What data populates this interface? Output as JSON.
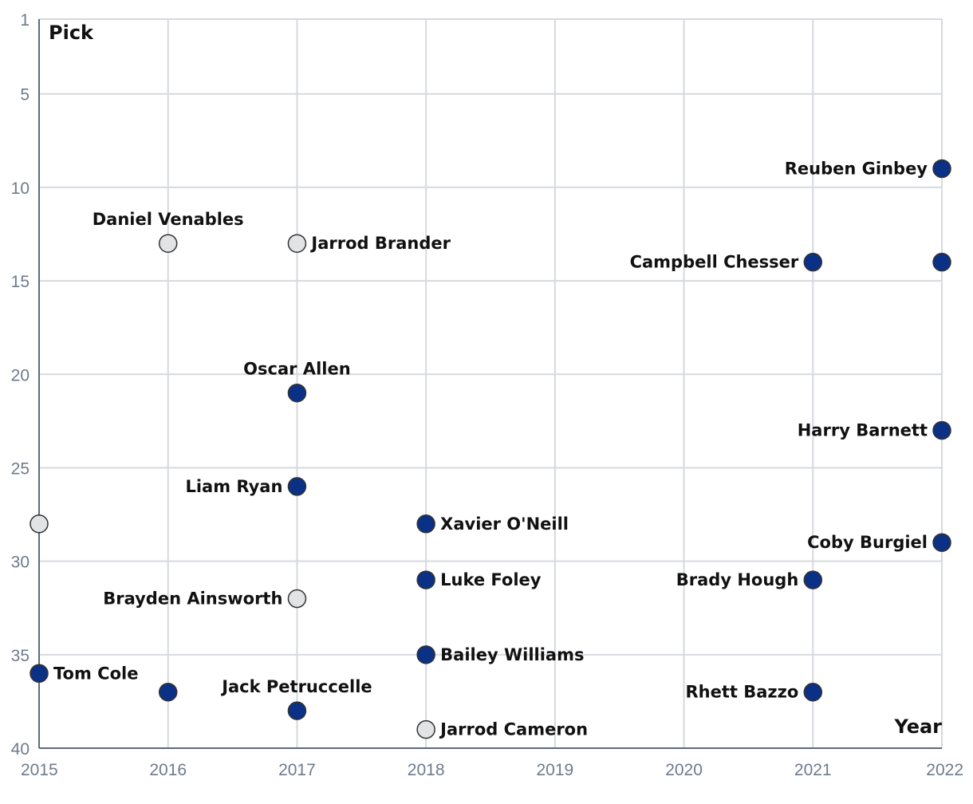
{
  "chart_data": {
    "type": "scatter",
    "xlabel": "Year",
    "ylabel": "Pick",
    "xlim": [
      2015,
      2022
    ],
    "ylim": [
      1,
      40
    ],
    "y_inverted": true,
    "x_ticks": [
      2015,
      2016,
      2017,
      2018,
      2019,
      2020,
      2021,
      2022
    ],
    "y_ticks": [
      1,
      5,
      10,
      15,
      20,
      25,
      30,
      35,
      40
    ],
    "grid": true,
    "colors": {
      "filled": "#0a3185",
      "hollow": "#e2e3e5"
    },
    "series": [
      {
        "name": "filled",
        "points": [
          {
            "year": 2015,
            "pick": 36,
            "label": "Tom Cole",
            "label_pos": "right"
          },
          {
            "year": 2016,
            "pick": 37,
            "label": "",
            "label_pos": "none"
          },
          {
            "year": 2017,
            "pick": 21,
            "label": "Oscar Allen",
            "label_pos": "above"
          },
          {
            "year": 2017,
            "pick": 26,
            "label": "Liam Ryan",
            "label_pos": "left"
          },
          {
            "year": 2017,
            "pick": 38,
            "label": "Jack Petruccelle",
            "label_pos": "above"
          },
          {
            "year": 2018,
            "pick": 28,
            "label": "Xavier O'Neill",
            "label_pos": "right"
          },
          {
            "year": 2018,
            "pick": 31,
            "label": "Luke Foley",
            "label_pos": "right"
          },
          {
            "year": 2018,
            "pick": 35,
            "label": "Bailey Williams",
            "label_pos": "right"
          },
          {
            "year": 2021,
            "pick": 14,
            "label": "Campbell Chesser",
            "label_pos": "left"
          },
          {
            "year": 2021,
            "pick": 31,
            "label": "Brady Hough",
            "label_pos": "left"
          },
          {
            "year": 2021,
            "pick": 37,
            "label": "Rhett Bazzo",
            "label_pos": "left"
          },
          {
            "year": 2022,
            "pick": 9,
            "label": "Reuben Ginbey",
            "label_pos": "left"
          },
          {
            "year": 2022,
            "pick": 14,
            "label": "",
            "label_pos": "none"
          },
          {
            "year": 2022,
            "pick": 23,
            "label": "Harry Barnett",
            "label_pos": "left"
          },
          {
            "year": 2022,
            "pick": 29,
            "label": "Coby Burgiel",
            "label_pos": "left"
          }
        ]
      },
      {
        "name": "hollow",
        "points": [
          {
            "year": 2015,
            "pick": 28,
            "label": "",
            "label_pos": "none"
          },
          {
            "year": 2016,
            "pick": 13,
            "label": "Daniel Venables",
            "label_pos": "above"
          },
          {
            "year": 2017,
            "pick": 13,
            "label": "Jarrod Brander",
            "label_pos": "right"
          },
          {
            "year": 2017,
            "pick": 32,
            "label": "Brayden Ainsworth",
            "label_pos": "left"
          },
          {
            "year": 2018,
            "pick": 39,
            "label": "Jarrod Cameron",
            "label_pos": "right"
          }
        ]
      }
    ]
  }
}
